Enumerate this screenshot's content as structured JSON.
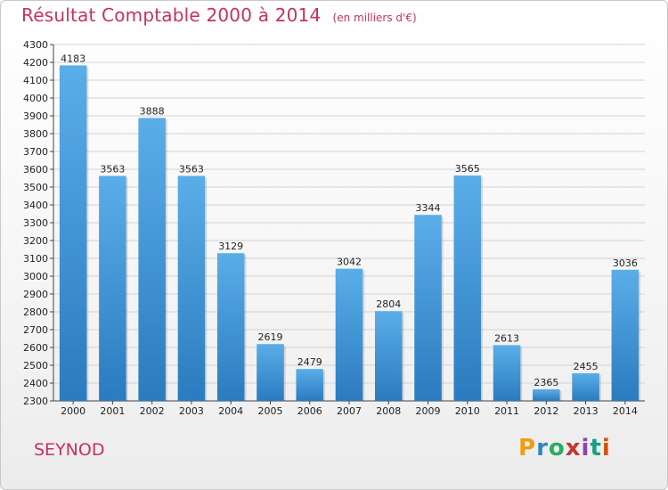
{
  "chart_data": {
    "type": "bar",
    "title": "Résultat Comptable 2000 à 2014",
    "subtitle": "(en milliers d'€)",
    "categories": [
      "2000",
      "2001",
      "2002",
      "2003",
      "2004",
      "2005",
      "2006",
      "2007",
      "2008",
      "2009",
      "2010",
      "2011",
      "2012",
      "2013",
      "2014"
    ],
    "values": [
      4183,
      3563,
      3888,
      3563,
      3129,
      2619,
      2479,
      3042,
      2804,
      3344,
      3565,
      2613,
      2365,
      2455,
      3036
    ],
    "ylim": [
      2300,
      4300
    ],
    "ytick_step": 100,
    "grid": true,
    "xlabel": "",
    "ylabel": "",
    "bar_color_top": "#5aaee8",
    "bar_color_bottom": "#2a7bbf"
  },
  "footer": {
    "commune": "SEYNOD",
    "logo_text": "Proxiti",
    "logo_colors": [
      "#f39c12",
      "#2e86c1",
      "#27ae60",
      "#c0392b",
      "#8e44ad",
      "#16a085",
      "#d35400"
    ]
  },
  "colors": {
    "accent": "#c8325a",
    "grid": "#d2d2d2"
  }
}
